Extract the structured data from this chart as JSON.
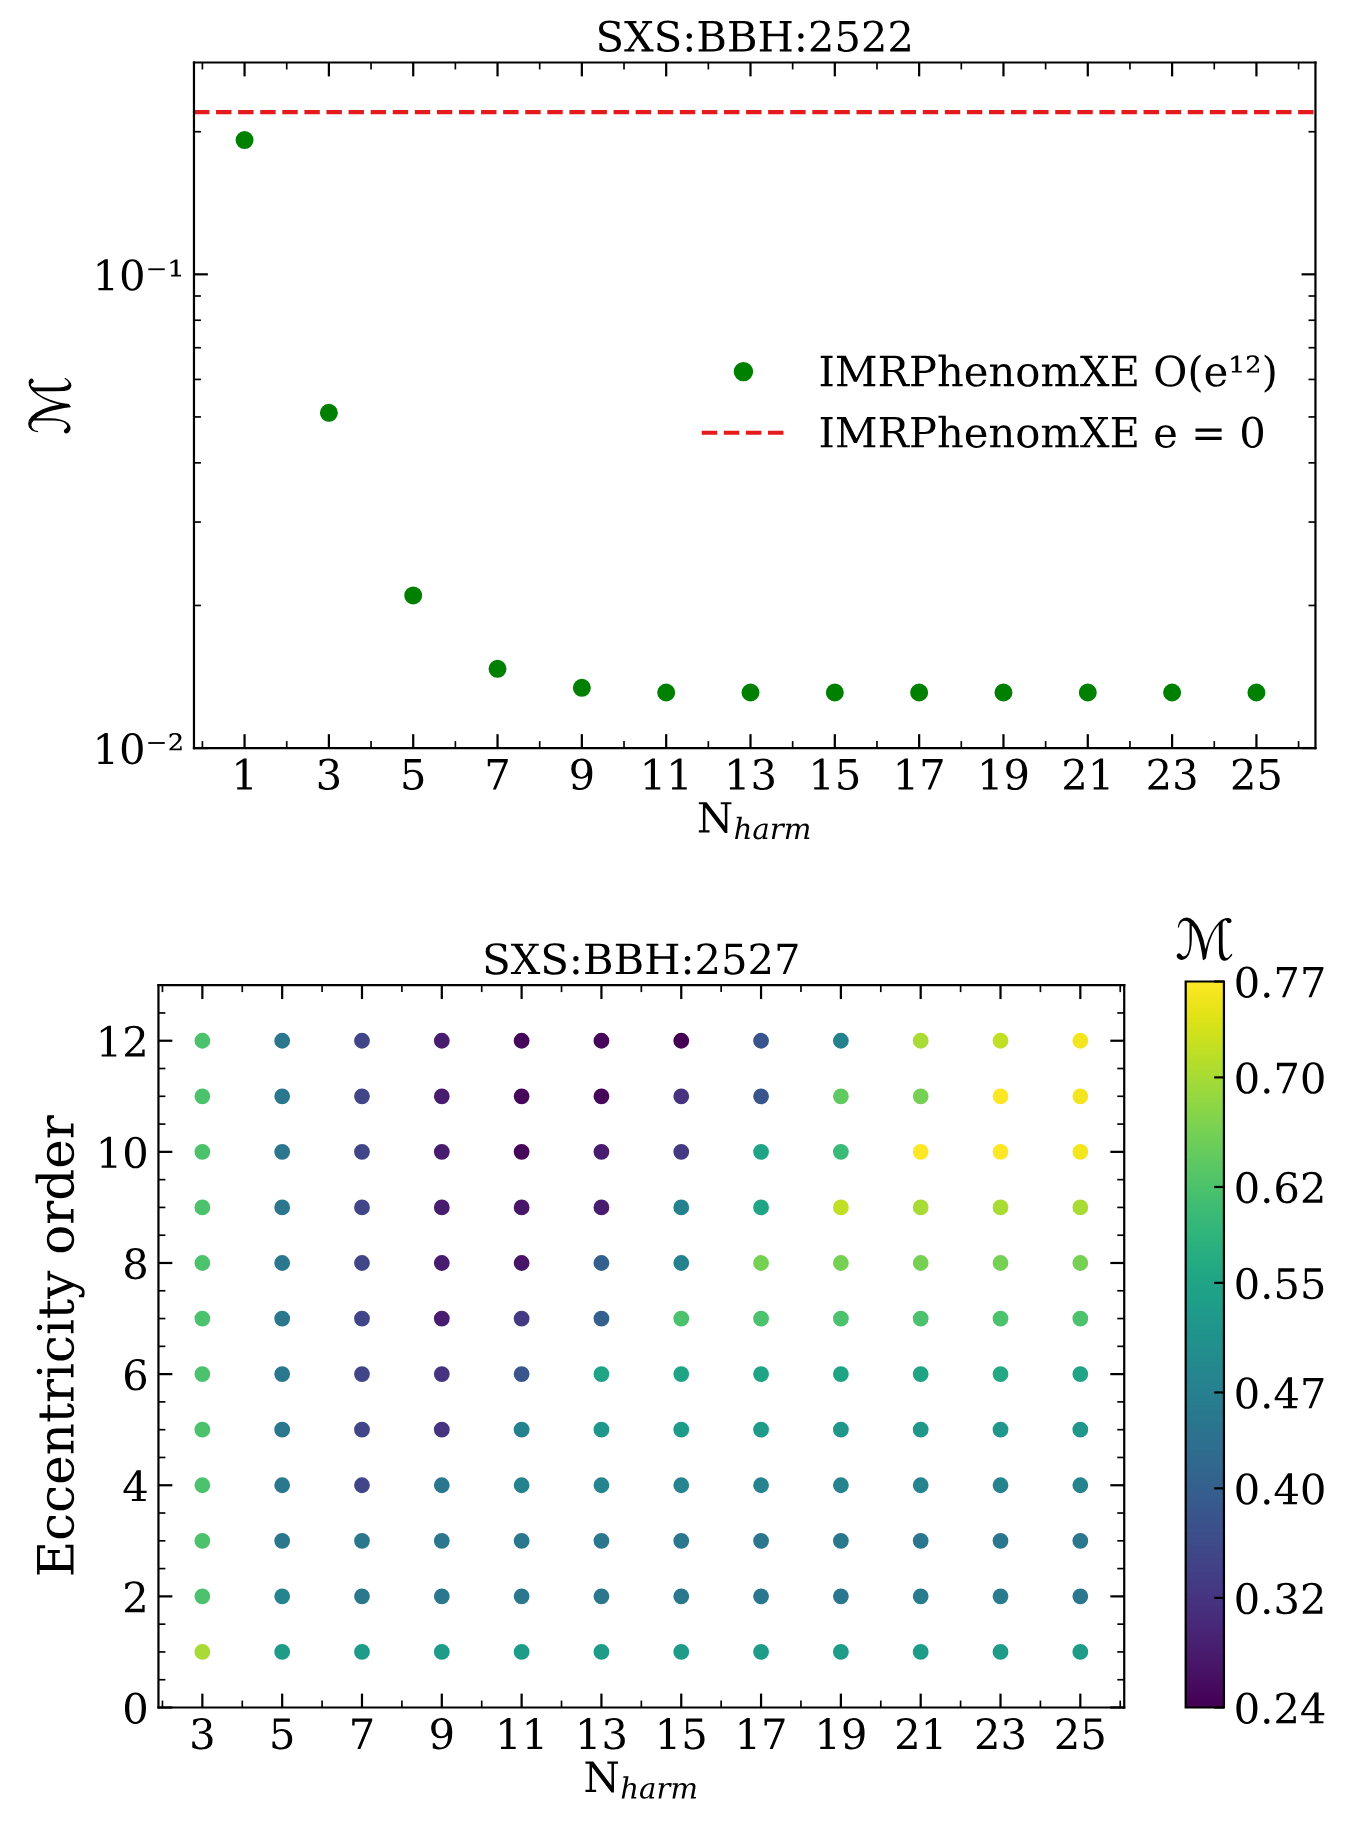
{
  "chart_data": [
    {
      "type": "scatter",
      "title": "SXS:BBH:2522",
      "xlabel": "N$_{harm}$",
      "ylabel": "ℳ",
      "log": "y",
      "marker": "circle",
      "legend": "right",
      "grid": false,
      "xlim": [
        -0.2,
        26.4
      ],
      "xticks": [
        1,
        3,
        5,
        7,
        9,
        11,
        13,
        15,
        17,
        19,
        21,
        23,
        25
      ],
      "ylim": [
        0.01,
        0.28
      ],
      "yticks": [
        {
          "value": 0.01,
          "label": "10⁻²"
        },
        {
          "value": 0.1,
          "label": "10⁻¹"
        }
      ],
      "series": [
        {
          "name": "IMRPhenomXE O(e¹²)",
          "color": "#008000",
          "x": [
            1,
            3,
            5,
            7,
            9,
            11,
            13,
            15,
            17,
            19,
            21,
            23,
            25
          ],
          "values": [
            0.192,
            0.051,
            0.021,
            0.0147,
            0.0134,
            0.0131,
            0.0131,
            0.0131,
            0.0131,
            0.0131,
            0.0131,
            0.0131,
            0.0131
          ]
        }
      ],
      "ref_lines": [
        {
          "axis": "y",
          "value": 0.22,
          "label": "IMRPhenomXE e = 0",
          "color": "#e41a1c",
          "line_style": "dashed"
        }
      ]
    },
    {
      "type": "scatter",
      "title": "SXS:BBH:2527",
      "xlabel": "N$_{harm}$",
      "ylabel": "Eccentricity order",
      "clabel": "ℳ",
      "marker": "circle",
      "grid": false,
      "xlim": [
        1.9,
        26.1
      ],
      "xticks": [
        3,
        5,
        7,
        9,
        11,
        13,
        15,
        17,
        19,
        21,
        23,
        25
      ],
      "ylim": [
        0,
        13
      ],
      "yticks": [
        0,
        2,
        4,
        6,
        8,
        10,
        12
      ],
      "clim": [
        0.24,
        0.77
      ],
      "cticks": [
        {
          "value": 0.24,
          "label": "0.24"
        },
        {
          "value": 0.32,
          "label": "0.32"
        },
        {
          "value": 0.4,
          "label": "0.40"
        },
        {
          "value": 0.47,
          "label": "0.47"
        },
        {
          "value": 0.55,
          "label": "0.55"
        },
        {
          "value": 0.62,
          "label": "0.62"
        },
        {
          "value": 0.7,
          "label": "0.70"
        },
        {
          "value": 0.77,
          "label": "0.77"
        }
      ],
      "x": [
        3,
        3,
        3,
        3,
        3,
        3,
        3,
        3,
        3,
        3,
        3,
        3,
        5,
        5,
        5,
        5,
        5,
        5,
        5,
        5,
        5,
        5,
        5,
        5,
        7,
        7,
        7,
        7,
        7,
        7,
        7,
        7,
        7,
        7,
        7,
        7,
        9,
        9,
        9,
        9,
        9,
        9,
        9,
        9,
        9,
        9,
        9,
        9,
        11,
        11,
        11,
        11,
        11,
        11,
        11,
        11,
        11,
        11,
        11,
        11,
        13,
        13,
        13,
        13,
        13,
        13,
        13,
        13,
        13,
        13,
        13,
        13,
        15,
        15,
        15,
        15,
        15,
        15,
        15,
        15,
        15,
        15,
        15,
        15,
        17,
        17,
        17,
        17,
        17,
        17,
        17,
        17,
        17,
        17,
        17,
        17,
        19,
        19,
        19,
        19,
        19,
        19,
        19,
        19,
        19,
        19,
        19,
        19,
        21,
        21,
        21,
        21,
        21,
        21,
        21,
        21,
        21,
        21,
        21,
        21,
        23,
        23,
        23,
        23,
        23,
        23,
        23,
        23,
        23,
        23,
        23,
        23,
        25,
        25,
        25,
        25,
        25,
        25,
        25,
        25,
        25,
        25,
        25,
        25
      ],
      "values": [
        1,
        2,
        3,
        4,
        5,
        6,
        7,
        8,
        9,
        10,
        11,
        12,
        1,
        2,
        3,
        4,
        5,
        6,
        7,
        8,
        9,
        10,
        11,
        12,
        1,
        2,
        3,
        4,
        5,
        6,
        7,
        8,
        9,
        10,
        11,
        12,
        1,
        2,
        3,
        4,
        5,
        6,
        7,
        8,
        9,
        10,
        11,
        12,
        1,
        2,
        3,
        4,
        5,
        6,
        7,
        8,
        9,
        10,
        11,
        12,
        1,
        2,
        3,
        4,
        5,
        6,
        7,
        8,
        9,
        10,
        11,
        12,
        1,
        2,
        3,
        4,
        5,
        6,
        7,
        8,
        9,
        10,
        11,
        12,
        1,
        2,
        3,
        4,
        5,
        6,
        7,
        8,
        9,
        10,
        11,
        12,
        1,
        2,
        3,
        4,
        5,
        6,
        7,
        8,
        9,
        10,
        11,
        12,
        1,
        2,
        3,
        4,
        5,
        6,
        7,
        8,
        9,
        10,
        11,
        12,
        1,
        2,
        3,
        4,
        5,
        6,
        7,
        8,
        9,
        10,
        11,
        12,
        1,
        2,
        3,
        4,
        5,
        6,
        7,
        8,
        9,
        10,
        11,
        12
      ],
      "cvalues": [
        0.7,
        0.62,
        0.62,
        0.62,
        0.62,
        0.62,
        0.62,
        0.62,
        0.62,
        0.62,
        0.62,
        0.62,
        0.53,
        0.48,
        0.45,
        0.45,
        0.45,
        0.45,
        0.45,
        0.45,
        0.45,
        0.45,
        0.45,
        0.45,
        0.53,
        0.45,
        0.45,
        0.35,
        0.35,
        0.35,
        0.35,
        0.35,
        0.35,
        0.35,
        0.35,
        0.35,
        0.53,
        0.45,
        0.45,
        0.45,
        0.32,
        0.32,
        0.28,
        0.28,
        0.28,
        0.28,
        0.28,
        0.28,
        0.53,
        0.45,
        0.45,
        0.47,
        0.47,
        0.38,
        0.33,
        0.27,
        0.27,
        0.25,
        0.25,
        0.25,
        0.53,
        0.45,
        0.45,
        0.48,
        0.52,
        0.55,
        0.4,
        0.4,
        0.28,
        0.28,
        0.25,
        0.25,
        0.53,
        0.45,
        0.45,
        0.48,
        0.53,
        0.55,
        0.62,
        0.47,
        0.47,
        0.33,
        0.32,
        0.24,
        0.53,
        0.45,
        0.45,
        0.48,
        0.53,
        0.55,
        0.62,
        0.66,
        0.55,
        0.55,
        0.38,
        0.38,
        0.53,
        0.45,
        0.45,
        0.48,
        0.52,
        0.55,
        0.62,
        0.66,
        0.72,
        0.6,
        0.64,
        0.47,
        0.53,
        0.46,
        0.45,
        0.48,
        0.52,
        0.55,
        0.62,
        0.66,
        0.7,
        0.77,
        0.66,
        0.7,
        0.53,
        0.46,
        0.45,
        0.48,
        0.52,
        0.56,
        0.62,
        0.66,
        0.7,
        0.77,
        0.77,
        0.72,
        0.53,
        0.45,
        0.45,
        0.48,
        0.52,
        0.55,
        0.62,
        0.66,
        0.7,
        0.76,
        0.76,
        0.76
      ]
    }
  ]
}
